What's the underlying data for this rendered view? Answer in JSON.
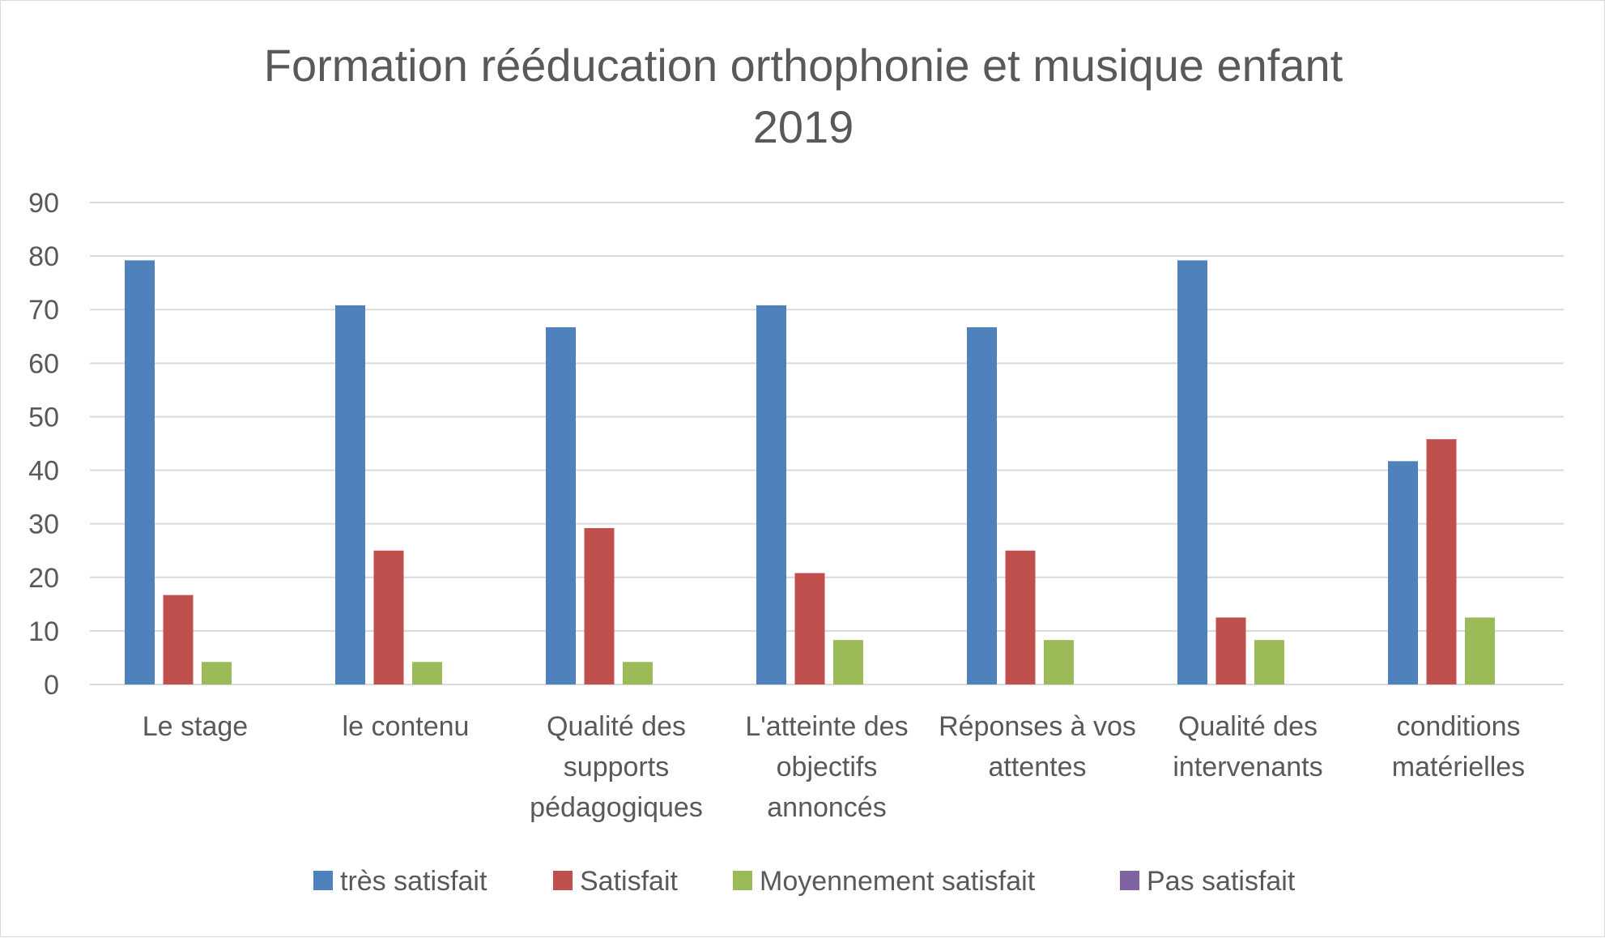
{
  "chart_data": {
    "type": "bar",
    "title": [
      "Formation rééducation orthophonie et musique enfant",
      "2019"
    ],
    "xlabel": "",
    "ylabel": "",
    "ylim": [
      0,
      90
    ],
    "yticks": [
      0,
      10,
      20,
      30,
      40,
      50,
      60,
      70,
      80,
      90
    ],
    "grid": true,
    "legend_position": "bottom",
    "categories": [
      [
        "Le stage"
      ],
      [
        "le contenu"
      ],
      [
        "Qualité des",
        "supports",
        "pédagogiques"
      ],
      [
        "L'atteinte des",
        "objectifs",
        "annoncés"
      ],
      [
        "Réponses à vos",
        "attentes"
      ],
      [
        "Qualité des",
        "intervenants"
      ],
      [
        "conditions",
        "matérielles"
      ]
    ],
    "series": [
      {
        "name": "très satisfait",
        "color": "#4f81bd",
        "values": [
          79.2,
          70.8,
          66.7,
          70.8,
          66.7,
          79.2,
          41.7
        ]
      },
      {
        "name": "Satisfait",
        "color": "#c0504d",
        "values": [
          16.7,
          25.0,
          29.2,
          20.8,
          25.0,
          12.5,
          45.8
        ]
      },
      {
        "name": "Moyennement satisfait",
        "color": "#9bbb59",
        "values": [
          4.2,
          4.2,
          4.2,
          8.3,
          8.3,
          8.3,
          12.5
        ]
      },
      {
        "name": "Pas satisfait",
        "color": "#8064a2",
        "values": [
          0,
          0,
          0,
          0,
          0,
          0,
          0
        ]
      }
    ]
  }
}
